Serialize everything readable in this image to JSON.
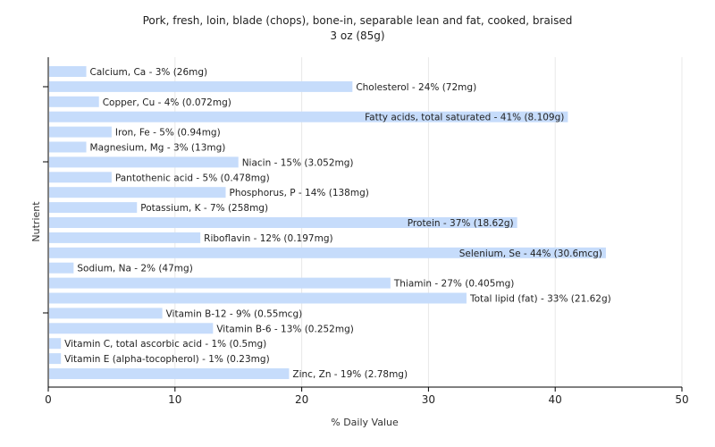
{
  "chart_data": {
    "type": "bar",
    "orientation": "horizontal",
    "title": "Pork, fresh, loin, blade (chops), bone-in, separable lean and fat, cooked, braised",
    "subtitle": "3 oz (85g)",
    "xlabel": "% Daily Value",
    "ylabel": "Nutrient",
    "xlim": [
      0,
      50
    ],
    "xticks": [
      0,
      10,
      20,
      30,
      40,
      50
    ],
    "grid": true,
    "bar_color": "#c6dcfb",
    "categories": [
      "Calcium, Ca",
      "Cholesterol",
      "Copper, Cu",
      "Fatty acids, total saturated",
      "Iron, Fe",
      "Magnesium, Mg",
      "Niacin",
      "Pantothenic acid",
      "Phosphorus, P",
      "Potassium, K",
      "Protein",
      "Riboflavin",
      "Selenium, Se",
      "Sodium, Na",
      "Thiamin",
      "Total lipid (fat)",
      "Vitamin B-12",
      "Vitamin B-6",
      "Vitamin C, total ascorbic acid",
      "Vitamin E (alpha-tocopherol)",
      "Zinc, Zn"
    ],
    "values": [
      3,
      24,
      4,
      41,
      5,
      3,
      15,
      5,
      14,
      7,
      37,
      12,
      44,
      2,
      27,
      33,
      9,
      13,
      1,
      1,
      19
    ],
    "labels": [
      "Calcium, Ca - 3% (26mg)",
      "Cholesterol - 24% (72mg)",
      "Copper, Cu - 4% (0.072mg)",
      "Fatty acids, total saturated - 41% (8.109g)",
      "Iron, Fe - 5% (0.94mg)",
      "Magnesium, Mg - 3% (13mg)",
      "Niacin - 15% (3.052mg)",
      "Pantothenic acid - 5% (0.478mg)",
      "Phosphorus, P - 14% (138mg)",
      "Potassium, K - 7% (258mg)",
      "Protein - 37% (18.62g)",
      "Riboflavin - 12% (0.197mg)",
      "Selenium, Se - 44% (30.6mcg)",
      "Sodium, Na - 2% (47mg)",
      "Thiamin - 27% (0.405mg)",
      "Total lipid (fat) - 33% (21.62g)",
      "Vitamin B-12 - 9% (0.55mcg)",
      "Vitamin B-6 - 13% (0.252mg)",
      "Vitamin C, total ascorbic acid - 1% (0.5mg)",
      "Vitamin E (alpha-tocopherol) - 1% (0.23mg)",
      "Zinc, Zn - 19% (2.78mg)"
    ]
  }
}
